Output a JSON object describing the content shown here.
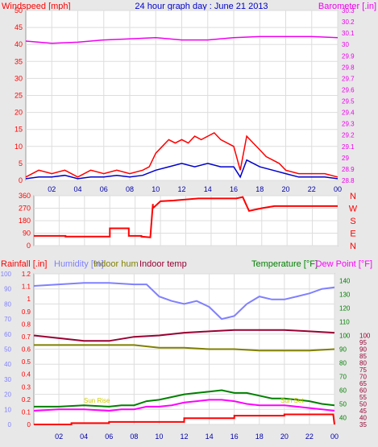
{
  "title": "24 hour graph day : June 21 2013",
  "x_ticks": [
    "02",
    "04",
    "06",
    "08",
    "10",
    "12",
    "14",
    "16",
    "18",
    "20",
    "22",
    "00"
  ],
  "colors": {
    "wind": "#ff0000",
    "gust_avg": "#0000cc",
    "barometer": "#ee00ee",
    "direction": "#ff0000",
    "rain": "#ff0000",
    "humidity": "#8080ff",
    "indoor_hum": "#808000",
    "indoor_temp": "#990033",
    "temperature": "#008000",
    "dew_point": "#ff00ff",
    "sun": "#ffff00"
  },
  "chart_data": [
    {
      "type": "line",
      "panel": "wind-barometer",
      "title": "24 hour graph day : June 21 2013",
      "ylabel_left": "Windspeed [mph]",
      "ylabel_right": "Barometer [.in]",
      "y_ticks_left": [
        "0",
        "5",
        "10",
        "15",
        "20",
        "25",
        "30",
        "35",
        "40",
        "45",
        "50"
      ],
      "y_ticks_right": [
        "28.8",
        "28.9",
        "29",
        "29.1",
        "29.2",
        "29.3",
        "29.4",
        "29.5",
        "29.6",
        "29.7",
        "29.8",
        "29.9",
        "30",
        "30.1",
        "30.2",
        "30.3"
      ],
      "ylim_left": [
        0,
        50
      ],
      "ylim_right": [
        28.8,
        30.3
      ],
      "xlim": [
        0,
        24
      ],
      "series": [
        {
          "key": "wind_gust",
          "color_key": "wind",
          "x": [
            0,
            1,
            2,
            3,
            4,
            5,
            6,
            7,
            8,
            9,
            9.5,
            10,
            10.5,
            11,
            11.5,
            12,
            12.5,
            13,
            13.5,
            14,
            14.5,
            15,
            15.5,
            16,
            16.5,
            17,
            17.5,
            18,
            18.5,
            19,
            19.5,
            20,
            21,
            22,
            23,
            24
          ],
          "y": [
            1,
            3,
            2,
            3,
            1,
            3,
            2,
            3,
            2,
            3,
            4,
            8,
            10,
            12,
            11,
            12,
            11,
            13,
            12,
            13,
            14,
            12,
            11,
            10,
            3,
            13,
            11,
            9,
            7,
            6,
            5,
            3,
            2,
            2,
            2,
            1
          ]
        },
        {
          "key": "wind_avg",
          "color_key": "gust_avg",
          "x": [
            0,
            1,
            2,
            3,
            4,
            5,
            6,
            7,
            8,
            9,
            10,
            11,
            12,
            13,
            14,
            15,
            16,
            16.5,
            17,
            18,
            19,
            20,
            21,
            22,
            23,
            24
          ],
          "y": [
            0.5,
            1,
            1,
            1.5,
            0.5,
            1,
            1,
            1.5,
            1,
            1.5,
            3,
            4,
            5,
            4,
            5,
            4,
            4,
            1,
            6,
            4,
            3,
            2,
            1,
            1,
            1,
            0.5
          ]
        },
        {
          "key": "barometer",
          "color_key": "barometer",
          "axis": "right",
          "x": [
            0,
            2,
            4,
            6,
            8,
            10,
            12,
            14,
            16,
            18,
            20,
            22,
            24
          ],
          "y": [
            30.03,
            30.01,
            30.02,
            30.04,
            30.05,
            30.06,
            30.04,
            30.04,
            30.06,
            30.07,
            30.07,
            30.07,
            30.06
          ]
        }
      ]
    },
    {
      "type": "line",
      "panel": "wind-direction",
      "y_ticks_left": [
        "0",
        "90",
        "180",
        "270",
        "360"
      ],
      "y_ticks_right": [
        "N",
        "E",
        "S",
        "W",
        "N"
      ],
      "ylim": [
        0,
        360
      ],
      "xlim": [
        0,
        24
      ],
      "series": [
        {
          "key": "direction",
          "color_key": "direction",
          "x": [
            0,
            2.5,
            2.5,
            4,
            4,
            6,
            6,
            7.5,
            7.5,
            8.5,
            8.5,
            9.2,
            9.4,
            9.4,
            10,
            11,
            13,
            16,
            16.5,
            17,
            18,
            19,
            20,
            22,
            24
          ],
          "y": [
            70,
            70,
            65,
            65,
            65,
            65,
            125,
            125,
            70,
            70,
            65,
            60,
            300,
            270,
            320,
            325,
            340,
            340,
            350,
            250,
            270,
            285,
            285,
            285,
            285
          ]
        }
      ]
    },
    {
      "type": "line",
      "panel": "rain-humidity-temperature",
      "ylabel_left": "Rainfall [.in]",
      "ylabel_humidity": "Humidity [%]",
      "legend_indoor_hum": "Indoor hum",
      "legend_indoor_temp": "Indoor temp",
      "ylabel_right": "Temperature [°F]",
      "ylabel_dew": "Dew Point [°F]",
      "sun_label": "Sun Rise",
      "set_label": "Sun Set",
      "y_ticks_humidity": [
        "0",
        "10",
        "20",
        "30",
        "40",
        "50",
        "60",
        "70",
        "80",
        "90",
        "100"
      ],
      "y_ticks_rain": [
        "0",
        "0.1",
        "0.2",
        "0.3",
        "0.4",
        "0.5",
        "0.6",
        "0.7",
        "0.8",
        "0.9",
        "1",
        "1.1",
        "1.2"
      ],
      "y_ticks_temp": [
        "40",
        "50",
        "60",
        "70",
        "80",
        "90",
        "100",
        "110",
        "120",
        "130",
        "140"
      ],
      "y_ticks_dew": [
        "35",
        "40",
        "45",
        "50",
        "55",
        "60",
        "65",
        "70",
        "75",
        "80",
        "85",
        "90",
        "95",
        "100"
      ],
      "ylim_humidity": [
        0,
        100
      ],
      "ylim_temp": [
        35,
        145
      ],
      "xlim": [
        0,
        24
      ],
      "series": [
        {
          "key": "humidity",
          "color_key": "humidity",
          "axis": "humidity",
          "x": [
            0,
            2,
            4,
            6,
            8,
            9,
            10,
            11,
            12,
            13,
            14,
            15,
            16,
            17,
            18,
            19,
            20,
            21,
            22,
            23,
            24
          ],
          "y": [
            92,
            93,
            94,
            94,
            93,
            93,
            85,
            82,
            80,
            82,
            78,
            70,
            72,
            80,
            85,
            83,
            83,
            85,
            87,
            90,
            91
          ]
        },
        {
          "key": "indoor_temp",
          "color_key": "indoor_temp",
          "axis": "temp",
          "x": [
            0,
            2,
            4,
            6,
            8,
            10,
            12,
            14,
            16,
            18,
            20,
            22,
            24
          ],
          "y": [
            100,
            98,
            96,
            96,
            99,
            100,
            102,
            103,
            104,
            104,
            104,
            103,
            102
          ]
        },
        {
          "key": "indoor_hum",
          "color_key": "indoor_hum",
          "axis": "temp",
          "x": [
            0,
            2,
            4,
            6,
            8,
            10,
            12,
            14,
            16,
            18,
            20,
            22,
            24
          ],
          "y": [
            93,
            93,
            93,
            93,
            93,
            91,
            91,
            90,
            90,
            89,
            89,
            89,
            90
          ]
        },
        {
          "key": "temperature",
          "color_key": "temperature",
          "axis": "temp",
          "x": [
            0,
            2,
            4,
            6,
            7,
            8,
            9,
            10,
            11,
            12,
            13,
            14,
            15,
            16,
            17,
            18,
            19,
            20,
            21,
            22,
            23,
            24
          ],
          "y": [
            48,
            48,
            49,
            48,
            49,
            49,
            52,
            53,
            55,
            57,
            58,
            59,
            60,
            58,
            58,
            56,
            54,
            54,
            53,
            52,
            50,
            49
          ]
        },
        {
          "key": "dew_point",
          "color_key": "dew_point",
          "axis": "temp",
          "x": [
            0,
            2,
            4,
            6,
            7,
            8,
            9,
            10,
            11,
            12,
            13,
            14,
            15,
            16,
            17,
            18,
            19,
            20,
            21,
            22,
            23,
            24
          ],
          "y": [
            45,
            46,
            46,
            45,
            46,
            46,
            48,
            48,
            49,
            51,
            52,
            53,
            53,
            52,
            50,
            49,
            49,
            49,
            48,
            47,
            46,
            45
          ]
        },
        {
          "key": "rain",
          "color_key": "rain",
          "axis": "rain",
          "x": [
            0,
            3,
            3,
            6,
            6,
            9,
            9,
            12,
            12,
            16,
            16,
            20,
            20,
            23.9,
            24
          ],
          "y": [
            0.0,
            0.0,
            0.01,
            0.01,
            0.02,
            0.02,
            0.02,
            0.02,
            0.05,
            0.05,
            0.07,
            0.07,
            0.08,
            0.08,
            0.0
          ]
        }
      ]
    }
  ]
}
